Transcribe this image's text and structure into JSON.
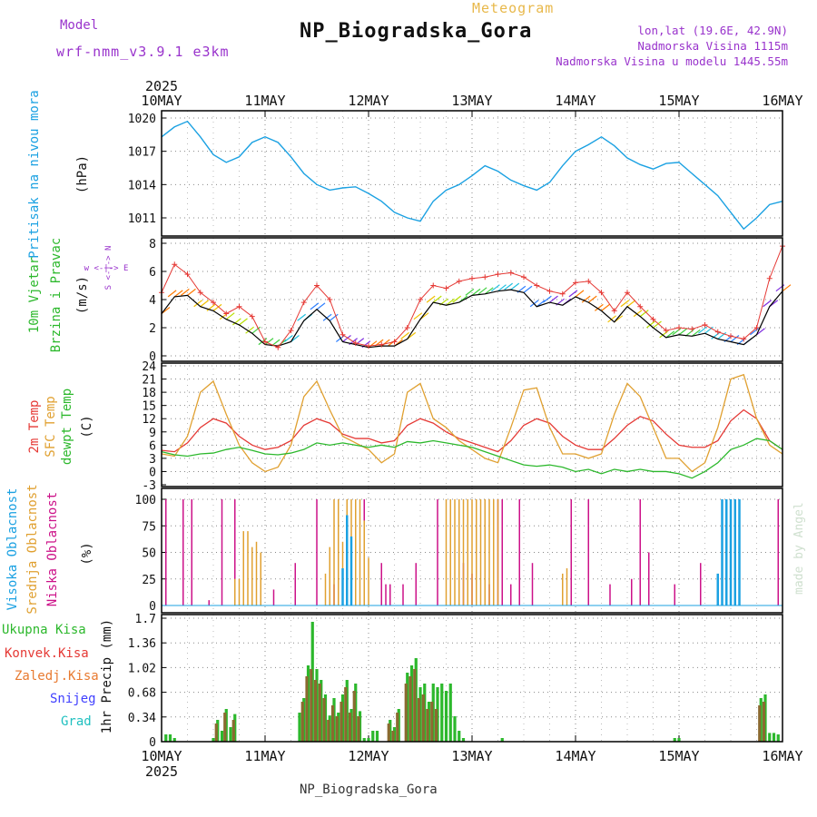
{
  "header": {
    "model_label": "Model",
    "model_name": "wrf-nmm_v3.9.1 e3km",
    "meteogram_label": "Meteogram",
    "station": "NP_Biogradska_Gora",
    "lonlat": "lon,lat (19.6E, 42.9N)",
    "elevation": "Nadmorska Visina 1115m",
    "model_elevation": "Nadmorska Visina u modelu 1445.55m",
    "watermark": "made by Angel",
    "footer_station": "NP_Biogradska_Gora"
  },
  "colors": {
    "pressure": "#1ba1e2",
    "wind_speed": "#000000",
    "gust": "#e53935",
    "temp2m": "#e53935",
    "sfc_temp": "#e0a030",
    "dewpoint": "#2cb82c",
    "high_cloud": "#1ba1e2",
    "mid_cloud": "#e0a030",
    "low_cloud": "#cc1188",
    "total_precip": "#2cb82c",
    "conv_precip": "#e53935",
    "snow_precip": "#4040ff",
    "graupel": "#20c0c0",
    "axis_label_purple": "#9933cc"
  },
  "chart_data": [
    {
      "type": "line",
      "name": "pressure",
      "title": "Pritisak na nivou mora",
      "ylabel": "(hPa)",
      "ylim": [
        1009,
        1021
      ],
      "yticks": [
        1011,
        1014,
        1017,
        1020
      ],
      "x_range_hours": [
        0,
        144
      ],
      "x_top_labels": [
        "10MAY",
        "11MAY",
        "12MAY",
        "13MAY",
        "14MAY",
        "15MAY",
        "16MAY"
      ],
      "x_top_year": "2025",
      "series": [
        {
          "name": "MSLP",
          "x": [
            0,
            3,
            6,
            9,
            12,
            15,
            18,
            21,
            24,
            27,
            30,
            33,
            36,
            39,
            42,
            45,
            48,
            51,
            54,
            57,
            60,
            63,
            66,
            69,
            72,
            75,
            78,
            81,
            84,
            87,
            90,
            93,
            96,
            99,
            102,
            105,
            108,
            111,
            114,
            117,
            120,
            123,
            126,
            129,
            132,
            135,
            138,
            141,
            144
          ],
          "y": [
            1018.3,
            1019.2,
            1019.7,
            1018.3,
            1016.7,
            1016.0,
            1016.5,
            1017.8,
            1018.3,
            1017.8,
            1016.5,
            1015.0,
            1014.0,
            1013.5,
            1013.7,
            1013.8,
            1013.2,
            1012.5,
            1011.5,
            1011.0,
            1010.7,
            1012.5,
            1013.5,
            1014.0,
            1014.8,
            1015.7,
            1015.2,
            1014.4,
            1013.9,
            1013.5,
            1014.2,
            1015.7,
            1017.0,
            1017.6,
            1018.3,
            1017.5,
            1016.4,
            1015.8,
            1015.4,
            1015.9,
            1016.0,
            1015.0,
            1014.0,
            1013.0,
            1011.5,
            1010.0,
            1011.0,
            1012.2,
            1012.5
          ]
        }
      ]
    },
    {
      "type": "line",
      "name": "wind",
      "title": "10m Vjetar Brzina i Pravac",
      "ylabel": "(m/s)",
      "compass_label": "w <-|-> E",
      "compass_vertical": "S <-|-> N",
      "ylim": [
        0,
        8
      ],
      "yticks": [
        0,
        2,
        4,
        6,
        8
      ],
      "series": [
        {
          "name": "speed",
          "x": [
            0,
            3,
            6,
            9,
            12,
            15,
            18,
            21,
            24,
            27,
            30,
            33,
            36,
            39,
            42,
            45,
            48,
            51,
            54,
            57,
            60,
            63,
            66,
            69,
            72,
            75,
            78,
            81,
            84,
            87,
            90,
            93,
            96,
            99,
            102,
            105,
            108,
            111,
            114,
            117,
            120,
            123,
            126,
            129,
            132,
            135,
            138,
            141,
            144
          ],
          "y": [
            3.0,
            4.2,
            4.3,
            3.5,
            3.2,
            2.6,
            2.2,
            1.6,
            0.8,
            0.7,
            1.0,
            2.5,
            3.3,
            2.5,
            1.0,
            0.8,
            0.6,
            0.7,
            0.7,
            1.2,
            2.6,
            3.8,
            3.6,
            3.8,
            4.3,
            4.4,
            4.6,
            4.7,
            4.5,
            3.5,
            3.8,
            3.6,
            4.2,
            3.8,
            3.2,
            2.4,
            3.5,
            2.8,
            2.0,
            1.3,
            1.5,
            1.4,
            1.6,
            1.2,
            1.0,
            0.8,
            1.5,
            3.5,
            4.6
          ]
        },
        {
          "name": "gust",
          "x": [
            0,
            3,
            6,
            9,
            12,
            15,
            18,
            21,
            24,
            27,
            30,
            33,
            36,
            39,
            42,
            45,
            48,
            51,
            54,
            57,
            60,
            63,
            66,
            69,
            72,
            75,
            78,
            81,
            84,
            87,
            90,
            93,
            96,
            99,
            102,
            105,
            108,
            111,
            114,
            117,
            120,
            123,
            126,
            129,
            132,
            135,
            138,
            141,
            144
          ],
          "y": [
            4.5,
            6.5,
            5.8,
            4.5,
            3.8,
            3.0,
            3.5,
            2.8,
            1.0,
            0.6,
            1.8,
            3.8,
            5.0,
            4.0,
            1.5,
            0.9,
            0.7,
            0.8,
            1.0,
            2.0,
            4.0,
            5.0,
            4.8,
            5.3,
            5.5,
            5.6,
            5.8,
            5.9,
            5.6,
            5.0,
            4.6,
            4.4,
            5.2,
            5.3,
            4.5,
            3.2,
            4.5,
            3.5,
            2.6,
            1.8,
            2.0,
            1.9,
            2.2,
            1.7,
            1.4,
            1.2,
            2.0,
            5.5,
            7.8
          ]
        }
      ]
    },
    {
      "type": "line",
      "name": "temperature",
      "title_lines": [
        "2m Temp",
        "SFC Temp",
        "dewpt Temp"
      ],
      "ylabel": "(C)",
      "ylim": [
        -3,
        24
      ],
      "yticks": [
        -3,
        0,
        3,
        6,
        9,
        12,
        15,
        18,
        21,
        24
      ],
      "series": [
        {
          "name": "2m Temp",
          "x": [
            0,
            3,
            6,
            9,
            12,
            15,
            18,
            21,
            24,
            27,
            30,
            33,
            36,
            39,
            42,
            45,
            48,
            51,
            54,
            57,
            60,
            63,
            66,
            69,
            72,
            75,
            78,
            81,
            84,
            87,
            90,
            93,
            96,
            99,
            102,
            105,
            108,
            111,
            114,
            117,
            120,
            123,
            126,
            129,
            132,
            135,
            138,
            141,
            144
          ],
          "y": [
            4.8,
            4.5,
            6.5,
            10.0,
            12.0,
            11.0,
            8.0,
            6.0,
            5.0,
            5.5,
            7.0,
            10.5,
            12.0,
            11.0,
            8.5,
            7.5,
            7.5,
            6.5,
            7.0,
            10.5,
            12.0,
            11.0,
            9.0,
            7.5,
            6.5,
            5.5,
            4.5,
            7.0,
            10.5,
            12.0,
            11.0,
            8.0,
            6.0,
            5.0,
            5.0,
            7.5,
            10.5,
            12.5,
            11.5,
            8.5,
            6.0,
            5.5,
            5.5,
            7.0,
            11.5,
            14.0,
            12.0,
            7.0,
            5.0
          ]
        },
        {
          "name": "SFC Temp",
          "x": [
            0,
            3,
            6,
            9,
            12,
            15,
            18,
            21,
            24,
            27,
            30,
            33,
            36,
            39,
            42,
            45,
            48,
            51,
            54,
            57,
            60,
            63,
            66,
            69,
            72,
            75,
            78,
            81,
            84,
            87,
            90,
            93,
            96,
            99,
            102,
            105,
            108,
            111,
            114,
            117,
            120,
            123,
            126,
            129,
            132,
            135,
            138,
            141,
            144
          ],
          "y": [
            4.0,
            3.5,
            8.0,
            18.0,
            20.5,
            13.0,
            6.0,
            2.0,
            0.0,
            1.0,
            6.0,
            17.0,
            20.5,
            14.0,
            8.0,
            6.5,
            5.0,
            2.0,
            4.0,
            18.0,
            20.0,
            12.0,
            10.0,
            7.0,
            5.0,
            3.0,
            2.0,
            10.0,
            18.5,
            19.0,
            10.0,
            4.0,
            4.0,
            3.0,
            4.0,
            13.0,
            20.0,
            17.0,
            10.0,
            3.0,
            3.0,
            0.0,
            2.0,
            10.0,
            21.0,
            22.0,
            12.0,
            6.0,
            4.0
          ]
        },
        {
          "name": "dewpt Temp",
          "x": [
            0,
            3,
            6,
            9,
            12,
            15,
            18,
            21,
            24,
            27,
            30,
            33,
            36,
            39,
            42,
            45,
            48,
            51,
            54,
            57,
            60,
            63,
            66,
            69,
            72,
            75,
            78,
            81,
            84,
            87,
            90,
            93,
            96,
            99,
            102,
            105,
            108,
            111,
            114,
            117,
            120,
            123,
            126,
            129,
            132,
            135,
            138,
            141,
            144
          ],
          "y": [
            4.5,
            3.8,
            3.5,
            4.0,
            4.2,
            5.0,
            5.5,
            4.8,
            4.0,
            3.8,
            4.2,
            5.0,
            6.5,
            6.0,
            6.5,
            6.0,
            5.5,
            6.0,
            5.5,
            6.8,
            6.5,
            7.0,
            6.5,
            6.0,
            5.5,
            4.5,
            3.5,
            2.5,
            1.5,
            1.2,
            1.5,
            1.0,
            0.0,
            0.5,
            -0.5,
            0.5,
            0.0,
            0.5,
            0.0,
            0.0,
            -0.5,
            -1.5,
            0.0,
            2.0,
            5.0,
            6.0,
            7.5,
            7.0,
            5.0
          ]
        }
      ]
    },
    {
      "type": "bar",
      "name": "cloud_cover",
      "title_lines": [
        "Visoka Oblacnost",
        "Srednja Oblacnost",
        "Niska Oblacnost"
      ],
      "ylabel": "(%)",
      "ylim": [
        0,
        100
      ],
      "yticks": [
        0,
        25,
        50,
        75,
        100
      ],
      "series": [
        {
          "name": "Niska Oblacnost",
          "x": [
            1,
            5,
            7,
            11,
            14,
            17,
            26,
            31,
            36,
            40,
            47,
            51,
            52,
            53,
            56,
            59,
            64,
            67,
            70,
            71,
            72,
            73,
            76,
            78,
            79,
            81,
            83,
            86,
            95,
            99,
            104,
            109,
            111,
            113,
            119,
            125,
            131,
            134,
            143
          ],
          "y": [
            100,
            100,
            100,
            5,
            100,
            100,
            15,
            40,
            100,
            20,
            100,
            40,
            20,
            20,
            20,
            40,
            100,
            45,
            40,
            40,
            30,
            40,
            20,
            100,
            100,
            20,
            100,
            40,
            100,
            100,
            20,
            25,
            100,
            50,
            20,
            40,
            10,
            20,
            100
          ]
        },
        {
          "name": "Srednja Oblacnost",
          "x": [
            17,
            18,
            19,
            20,
            21,
            22,
            23,
            38,
            39,
            40,
            41,
            42,
            43,
            44,
            45,
            46,
            47,
            48,
            66,
            67,
            68,
            69,
            70,
            71,
            72,
            73,
            74,
            75,
            76,
            77,
            78,
            93,
            94,
            130,
            131,
            132,
            133
          ],
          "y": [
            25,
            25,
            70,
            70,
            55,
            60,
            50,
            30,
            55,
            100,
            100,
            60,
            100,
            100,
            100,
            100,
            80,
            45,
            100,
            100,
            100,
            100,
            100,
            100,
            100,
            100,
            100,
            100,
            100,
            100,
            100,
            30,
            35,
            100,
            100,
            100,
            100
          ]
        },
        {
          "name": "Visoka Oblacnost",
          "x": [
            42,
            43,
            44,
            129,
            130,
            131,
            132,
            133,
            134
          ],
          "y": [
            35,
            85,
            65,
            30,
            100,
            100,
            100,
            100,
            100
          ]
        }
      ]
    },
    {
      "type": "bar",
      "name": "precipitation",
      "legend": [
        "Ukupna Kisa",
        "Konvek.Kisa",
        "Zaledj.Kisa",
        "Snijeg",
        "Grad"
      ],
      "ylabel": "1hr Precip (mm)",
      "ylim": [
        0,
        1.7
      ],
      "yticks": [
        0,
        0.34,
        0.68,
        1.02,
        1.36,
        1.7
      ],
      "x_bottom_labels": [
        "10MAY",
        "11MAY",
        "12MAY",
        "13MAY",
        "14MAY",
        "15MAY",
        "16MAY"
      ],
      "x_bottom_year": "2025",
      "series": [
        {
          "name": "Ukupna Kisa",
          "x": [
            1,
            2,
            3,
            12,
            13,
            14,
            15,
            16,
            17,
            32,
            33,
            34,
            35,
            36,
            37,
            38,
            39,
            40,
            41,
            42,
            43,
            44,
            45,
            46,
            47,
            48,
            49,
            50,
            53,
            54,
            55,
            57,
            58,
            59,
            60,
            61,
            62,
            63,
            64,
            65,
            66,
            67,
            68,
            69,
            70,
            79,
            119,
            120,
            139,
            140,
            141,
            142,
            143
          ],
          "y": [
            0.1,
            0.1,
            0.05,
            0.05,
            0.3,
            0.15,
            0.45,
            0.2,
            0.38,
            0.4,
            0.6,
            1.05,
            1.65,
            1.0,
            0.85,
            0.65,
            0.36,
            0.6,
            0.4,
            0.65,
            0.85,
            0.45,
            0.8,
            0.42,
            0.05,
            0.05,
            0.15,
            0.15,
            0.3,
            0.2,
            0.45,
            0.95,
            1.05,
            1.15,
            0.75,
            0.8,
            0.55,
            0.8,
            0.75,
            0.8,
            0.7,
            0.8,
            0.35,
            0.15,
            0.05,
            0.05,
            0.05,
            0.05,
            0.6,
            0.65,
            0.12,
            0.12,
            0.1
          ]
        },
        {
          "name": "Konvek.Kisa",
          "x": [
            13,
            15,
            17,
            33,
            34,
            35,
            36,
            37,
            38,
            39,
            40,
            41,
            42,
            43,
            44,
            45,
            46,
            53,
            54,
            55,
            57,
            58,
            59,
            60,
            61,
            62,
            63,
            64,
            139,
            140
          ],
          "y": [
            0.25,
            0.4,
            0.3,
            0.55,
            0.9,
            1.0,
            0.85,
            0.8,
            0.6,
            0.3,
            0.5,
            0.35,
            0.55,
            0.75,
            0.4,
            0.7,
            0.35,
            0.25,
            0.15,
            0.4,
            0.8,
            0.9,
            1.0,
            0.6,
            0.65,
            0.45,
            0.55,
            0.45,
            0.5,
            0.55
          ]
        }
      ]
    }
  ]
}
